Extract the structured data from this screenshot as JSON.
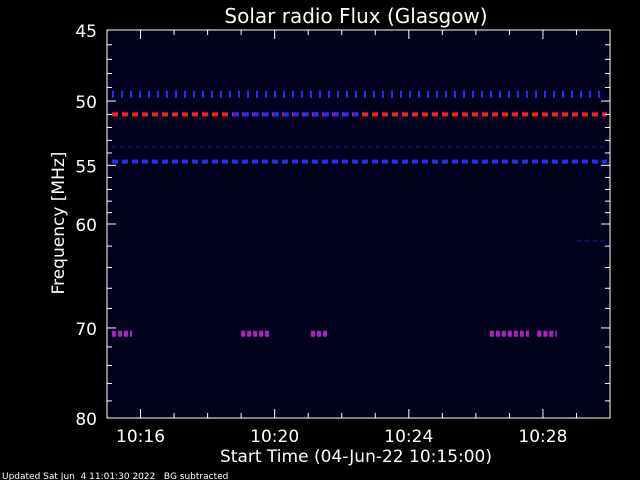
{
  "chart_data": {
    "type": "heatmap",
    "title": "Solar radio Flux (Glasgow)",
    "xlabel": "Start Time (04-Jun-22 10:15:00)",
    "ylabel": "Frequency [MHz]",
    "x_ticks": [
      "10:16",
      "10:20",
      "10:24",
      "10:28"
    ],
    "y_ticks": [
      45,
      50,
      55,
      60,
      70,
      80
    ],
    "xlim": [
      "10:15:00",
      "10:30:00"
    ],
    "ylim": [
      80,
      45
    ],
    "yscale": "log",
    "footer": "Updated Sat Jun  4 11:01:30 2022   BG subtracted",
    "colors": {
      "background": "#000000",
      "axes": "#ffffff",
      "plot_bg": "#000018",
      "intense": "#ff2020",
      "strong": "#2a2aff",
      "mixed": "#b020c0",
      "faint": "#0c0c78"
    },
    "features": [
      {
        "name": "interference-51MHz",
        "freq_mhz": 51.0,
        "start": "10:15:00",
        "end": "10:30:00",
        "color": "intense"
      },
      {
        "name": "interference-51MHz-blue-segment",
        "freq_mhz": 51.0,
        "start": "10:18:45",
        "end": "10:22:30",
        "color": "strong"
      },
      {
        "name": "interference-49.5MHz-ticks",
        "freq_mhz": 49.5,
        "start": "10:15:00",
        "end": "10:30:00",
        "color": "strong"
      },
      {
        "name": "interference-53.5MHz-faint",
        "freq_mhz": 53.5,
        "start": "10:15:00",
        "end": "10:30:00",
        "color": "faint"
      },
      {
        "name": "interference-54.7MHz",
        "freq_mhz": 54.7,
        "start": "10:15:00",
        "end": "10:30:00",
        "color": "strong"
      },
      {
        "name": "interference-61.5MHz",
        "freq_mhz": 61.5,
        "start": "10:29:00",
        "end": "10:30:00",
        "color": "faint"
      },
      {
        "name": "interference-70.6MHz-a",
        "freq_mhz": 70.6,
        "start": "10:15:00",
        "end": "10:15:45",
        "color": "mixed"
      },
      {
        "name": "interference-70.6MHz-b",
        "freq_mhz": 70.6,
        "start": "10:19:00",
        "end": "10:19:50",
        "color": "mixed"
      },
      {
        "name": "interference-70.6MHz-c",
        "freq_mhz": 70.6,
        "start": "10:21:05",
        "end": "10:21:35",
        "color": "mixed"
      },
      {
        "name": "interference-70.6MHz-d",
        "freq_mhz": 70.6,
        "start": "10:26:25",
        "end": "10:27:35",
        "color": "mixed"
      },
      {
        "name": "interference-70.6MHz-e",
        "freq_mhz": 70.6,
        "start": "10:27:50",
        "end": "10:28:25",
        "color": "mixed"
      }
    ]
  }
}
